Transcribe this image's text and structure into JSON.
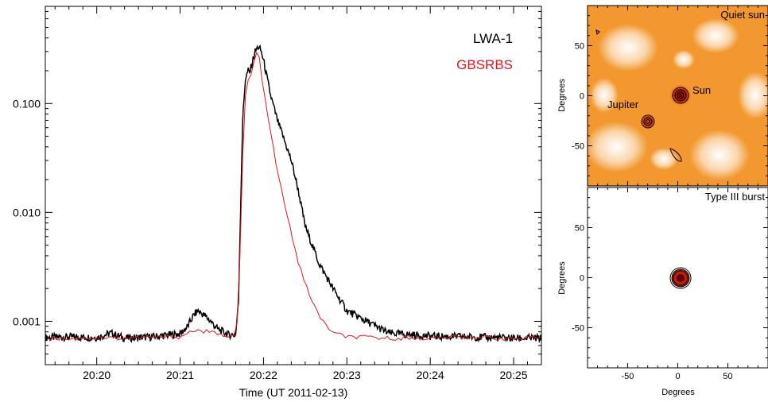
{
  "chart_data": [
    {
      "type": "line",
      "xlabel": "Time (UT 2011-02-13)",
      "ylabel": "",
      "yscale": "log",
      "xlim": [
        "20:19:23",
        "20:25:20"
      ],
      "ylim": [
        0.0004,
        0.78
      ],
      "x_ticks": [
        "20:20",
        "20:21",
        "20:22",
        "20:23",
        "20:24",
        "20:25"
      ],
      "y_ticks": [
        "0.001",
        "0.010",
        "0.100"
      ],
      "y_tick_values": [
        0.001,
        0.01,
        0.1
      ],
      "legend_position": "top-right",
      "grid": false,
      "series": [
        {
          "name": "LWA-1",
          "color": "#000000",
          "x": [
            "20:19:23",
            "20:19:40",
            "20:20:00",
            "20:20:10",
            "20:20:20",
            "20:20:40",
            "20:21:00",
            "20:21:05",
            "20:21:10",
            "20:21:13",
            "20:21:18",
            "20:21:22",
            "20:21:27",
            "20:21:35",
            "20:21:40",
            "20:21:42",
            "20:21:44",
            "20:21:45",
            "20:21:47",
            "20:21:49",
            "20:21:50",
            "20:21:52",
            "20:21:54",
            "20:21:56",
            "20:21:58",
            "20:22:00",
            "20:22:05",
            "20:22:10",
            "20:22:15",
            "20:22:20",
            "20:22:25",
            "20:22:30",
            "20:22:40",
            "20:22:50",
            "20:23:00",
            "20:23:30",
            "20:24:00",
            "20:24:30",
            "20:25:00",
            "20:25:20"
          ],
          "values": [
            0.00071,
            0.00072,
            0.00071,
            0.00078,
            0.0007,
            0.00072,
            0.00077,
            0.00088,
            0.00115,
            0.00125,
            0.00112,
            0.001,
            0.00085,
            0.00075,
            0.00076,
            0.0015,
            0.02,
            0.07,
            0.17,
            0.2,
            0.19,
            0.24,
            0.3,
            0.33,
            0.31,
            0.25,
            0.12,
            0.07,
            0.046,
            0.03,
            0.016,
            0.0075,
            0.0034,
            0.002,
            0.00125,
            0.00078,
            0.00073,
            0.00072,
            0.0007,
            0.0007
          ]
        },
        {
          "name": "GBSRBS",
          "color": "#e8141c",
          "x": [
            "20:19:23",
            "20:19:40",
            "20:20:00",
            "20:20:20",
            "20:20:40",
            "20:21:00",
            "20:21:10",
            "20:21:20",
            "20:21:30",
            "20:21:40",
            "20:21:42",
            "20:21:44",
            "20:21:46",
            "20:21:48",
            "20:21:50",
            "20:21:52",
            "20:21:54",
            "20:21:56",
            "20:21:58",
            "20:22:00",
            "20:22:05",
            "20:22:10",
            "20:22:15",
            "20:22:20",
            "20:22:25",
            "20:22:30",
            "20:22:40",
            "20:22:50",
            "20:23:00",
            "20:23:30",
            "20:24:00",
            "20:24:30",
            "20:25:00",
            "20:25:20"
          ],
          "values": [
            0.0007,
            0.0007,
            0.00071,
            0.0007,
            0.00071,
            0.00072,
            0.00083,
            0.0008,
            0.00075,
            0.00075,
            0.0012,
            0.012,
            0.08,
            0.17,
            0.16,
            0.2,
            0.28,
            0.3,
            0.22,
            0.13,
            0.055,
            0.024,
            0.012,
            0.0065,
            0.0035,
            0.0022,
            0.0011,
            0.00078,
            0.00072,
            0.0007,
            0.0007,
            0.00072,
            0.00069,
            0.0007
          ]
        }
      ]
    },
    {
      "type": "heatmap",
      "title": "Quiet sun",
      "xlabel": "",
      "ylabel": "Degrees",
      "y_ticks": [
        "50",
        "0",
        "-50"
      ],
      "y_tick_values": [
        50,
        0,
        -50
      ],
      "xlim": [
        -90,
        90
      ],
      "ylim": [
        -90,
        90
      ],
      "colormap": [
        "#ffffff",
        "#f08a10"
      ],
      "annotations": [
        {
          "text": "Sun",
          "x": 3,
          "y": 3
        },
        {
          "text": "Jupiter",
          "x": -32,
          "y": -25
        }
      ]
    },
    {
      "type": "heatmap",
      "title": "Type III burst",
      "xlabel": "Degrees",
      "ylabel": "Degrees",
      "x_ticks": [
        "-50",
        "0",
        "50"
      ],
      "x_tick_values": [
        -50,
        0,
        50
      ],
      "y_ticks": [
        "50",
        "0",
        "-50"
      ],
      "y_tick_values": [
        50,
        0,
        -50
      ],
      "xlim": [
        -90,
        90
      ],
      "ylim": [
        -90,
        90
      ],
      "source": {
        "x": 3,
        "y": 3
      }
    }
  ]
}
